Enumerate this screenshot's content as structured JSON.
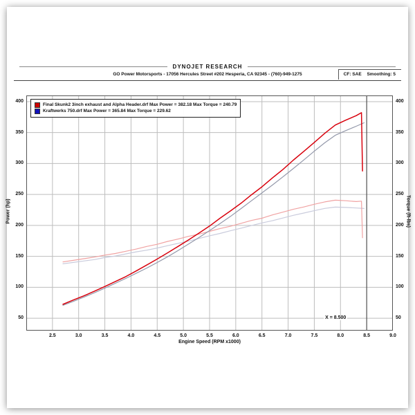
{
  "header": {
    "title": "DYNOJET RESEARCH",
    "subtitle": "GO Power Motorsports - 17056 Hercules Street #202 Hesperia, CA 92345 - (760)-949-1275",
    "cf_label": "CF: SAE",
    "smoothing_label": "Smoothing: 5"
  },
  "legend": {
    "items": [
      {
        "color": "#cc0000",
        "label": "Final Skunk2 3inch exhaust and Alpha Header.drf Max Power = 382.18 Max Torque = 240.79"
      },
      {
        "color": "#1111bb",
        "label": "Kraftwerks 750.drf Max Power = 365.84 Max Torque = 229.62"
      }
    ]
  },
  "cursor": {
    "x": 8.5,
    "label": "X = 8.500"
  },
  "chart_data": {
    "type": "line",
    "title": "DYNOJET RESEARCH",
    "xlabel": "Engine Speed (RPM x1000)",
    "ylabel_left": "Power (hp)",
    "ylabel_right": "Torque (ft-lbs)",
    "xlim": [
      2.0,
      9.0
    ],
    "ylim": [
      30,
      410
    ],
    "grid": true,
    "legend_position": "top-left",
    "xticks": [
      "2.5",
      "3.0",
      "3.5",
      "4.0",
      "4.5",
      "5.0",
      "5.5",
      "6.0",
      "6.5",
      "7.0",
      "7.5",
      "8.0",
      "8.5",
      "9.0"
    ],
    "yticks": [
      "50",
      "100",
      "150",
      "200",
      "250",
      "300",
      "350",
      "400"
    ],
    "series": [
      {
        "id": "kraftwerks-torque",
        "name": "Kraftwerks 750 Torque (ft-lbs)",
        "color": "#c9cbdc",
        "width": 1.2,
        "x": [
          2.7,
          2.9,
          3.1,
          3.3,
          3.5,
          3.7,
          3.9,
          4.1,
          4.3,
          4.5,
          4.7,
          4.9,
          5.1,
          5.3,
          5.5,
          5.7,
          5.9,
          6.1,
          6.3,
          6.5,
          6.7,
          6.9,
          7.1,
          7.3,
          7.5,
          7.7,
          7.9,
          8.1,
          8.3,
          8.45
        ],
        "y": [
          138,
          140.2,
          142.5,
          144.8,
          148,
          150.6,
          154,
          157.3,
          160,
          163.5,
          167.2,
          171,
          174.6,
          179,
          183.2,
          187,
          191.4,
          195.5,
          199.8,
          204,
          207.6,
          212,
          216.3,
          220,
          223.8,
          227.5,
          229.6,
          229.1,
          228.2,
          227.4
        ]
      },
      {
        "id": "skunk2-torque",
        "name": "Final Skunk2 Torque (ft-lbs)",
        "color": "#f0a2a2",
        "width": 1.2,
        "x": [
          2.7,
          2.9,
          3.1,
          3.3,
          3.5,
          3.7,
          3.9,
          4.1,
          4.3,
          4.5,
          4.7,
          4.9,
          5.1,
          5.3,
          5.5,
          5.7,
          5.9,
          6.1,
          6.3,
          6.5,
          6.7,
          6.9,
          7.1,
          7.3,
          7.5,
          7.7,
          7.9,
          8.1,
          8.3,
          8.4,
          8.42
        ],
        "y": [
          141,
          143.5,
          146.2,
          148.8,
          152,
          154.6,
          158.2,
          161.8,
          166,
          169.5,
          174.2,
          178,
          182.3,
          186,
          190.4,
          195,
          198.6,
          203.3,
          208,
          211.6,
          217,
          221.4,
          226,
          229.8,
          234.2,
          238,
          240.8,
          239.9,
          238.6,
          239.2,
          180
        ]
      },
      {
        "id": "kraftwerks-power",
        "name": "Kraftwerks 750 Power (hp)",
        "color": "#9398aa",
        "width": 1.2,
        "x": [
          2.7,
          2.9,
          3.1,
          3.3,
          3.5,
          3.7,
          3.9,
          4.1,
          4.3,
          4.5,
          4.7,
          4.9,
          5.1,
          5.3,
          5.5,
          5.7,
          5.9,
          6.1,
          6.3,
          6.5,
          6.7,
          6.9,
          7.1,
          7.3,
          7.5,
          7.7,
          7.9,
          8.1,
          8.3,
          8.45
        ],
        "y": [
          70.9,
          77.3,
          84.1,
          91.1,
          98.6,
          106.4,
          114.4,
          122.6,
          131.0,
          140.1,
          149.4,
          159.5,
          169.9,
          180.6,
          191.6,
          203.0,
          214.6,
          227.1,
          239.9,
          252.5,
          265.3,
          278.5,
          292.0,
          305.8,
          319.9,
          333.6,
          345.6,
          353.2,
          360.3,
          365.8
        ]
      },
      {
        "id": "skunk2-power",
        "name": "Final Skunk2 Power (hp)",
        "color": "#d8000c",
        "width": 1.5,
        "x": [
          2.7,
          2.9,
          3.1,
          3.3,
          3.5,
          3.7,
          3.9,
          4.1,
          4.3,
          4.5,
          4.7,
          4.9,
          5.1,
          5.3,
          5.5,
          5.7,
          5.9,
          6.1,
          6.3,
          6.5,
          6.7,
          6.9,
          7.1,
          7.3,
          7.5,
          7.7,
          7.9,
          8.1,
          8.3,
          8.4,
          8.42
        ],
        "y": [
          72.5,
          79.5,
          86.2,
          93.6,
          101.3,
          109.2,
          117.3,
          126.5,
          135.9,
          145.7,
          155.7,
          166.1,
          176.7,
          187.7,
          199.0,
          211.6,
          223.5,
          235.8,
          249.5,
          262.4,
          276.8,
          290.3,
          305.5,
          319.7,
          334.1,
          348.9,
          362.2,
          370.1,
          377.4,
          382.2,
          288.0
        ]
      }
    ]
  }
}
